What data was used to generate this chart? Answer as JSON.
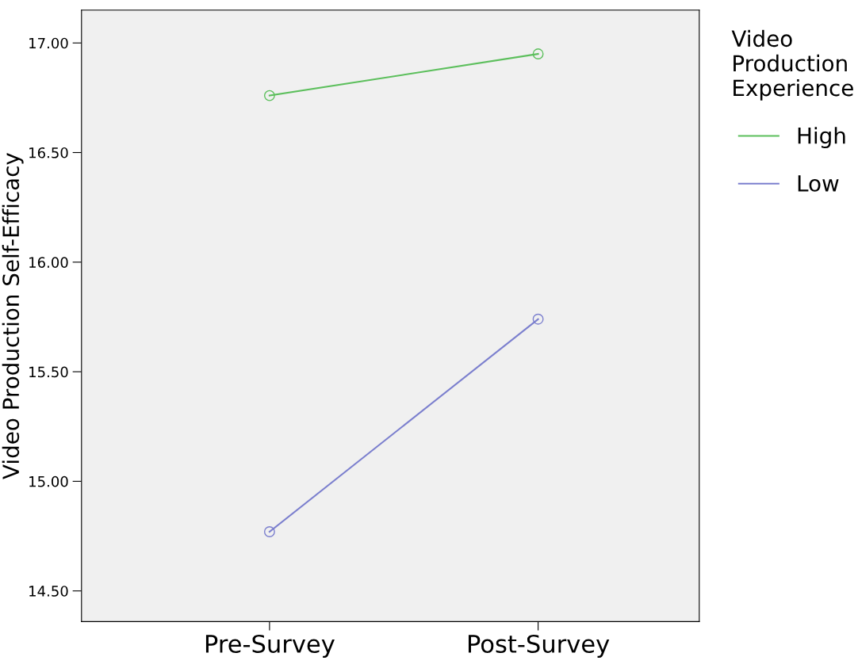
{
  "chart_data": {
    "type": "line",
    "ylabel": "Video Production Self-Efficacy",
    "legend_title": "Video\nProduction\nExperience",
    "categories": [
      "Pre-Survey",
      "Post-Survey"
    ],
    "series": [
      {
        "name": "High",
        "color": "#5cbf5c",
        "values": [
          16.76,
          16.95
        ]
      },
      {
        "name": "Low",
        "color": "#7b7fce",
        "values": [
          14.77,
          15.74
        ]
      }
    ],
    "ylim": [
      14.36,
      17.15
    ],
    "yticks": [
      {
        "value": 14.5,
        "label": "14.50"
      },
      {
        "value": 15.0,
        "label": "15.00"
      },
      {
        "value": 15.5,
        "label": "15.50"
      },
      {
        "value": 16.0,
        "label": "16.00"
      },
      {
        "value": 16.5,
        "label": "16.50"
      },
      {
        "value": 17.0,
        "label": "17.00"
      }
    ],
    "marker": "circle",
    "line_style": "solid",
    "grid": false,
    "legend": "right"
  }
}
